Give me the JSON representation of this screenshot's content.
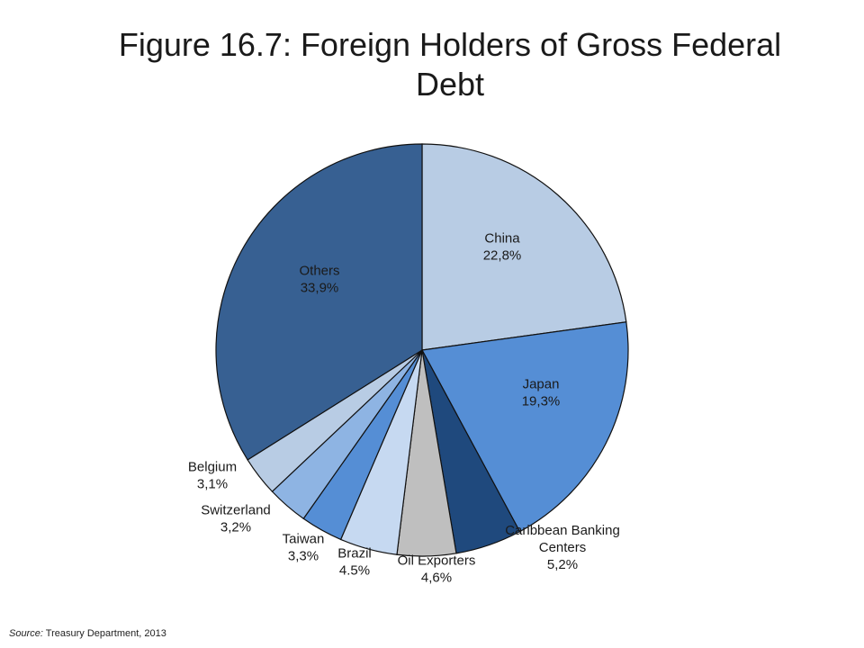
{
  "slide": {
    "title": "Figure 16.7: Foreign Holders of Gross Federal Debt",
    "source_prefix": "Source:",
    "source_text": " Treasury Department, 2013"
  },
  "chart_data": {
    "type": "pie",
    "title": "Figure 16.7: Foreign Holders of Gross Federal Debt",
    "start_angle": "12 o'clock",
    "direction": "clockwise",
    "legend": "none",
    "slices": [
      {
        "name": "China",
        "value": 22.8,
        "label": "22,8%",
        "color": "#b8cce4"
      },
      {
        "name": "Japan",
        "value": 19.3,
        "label": "19,3%",
        "color": "#558ed5"
      },
      {
        "name": "Caribbean Banking Centers",
        "value": 5.2,
        "label": "5,2%",
        "color": "#1f497d"
      },
      {
        "name": "Oil Exporters",
        "value": 4.6,
        "label": "4,6%",
        "color": "#bfbfbf"
      },
      {
        "name": "Brazil",
        "value": 4.5,
        "label": "4.5%",
        "color": "#c6d9f1"
      },
      {
        "name": "Taiwan",
        "value": 3.3,
        "label": "3,3%",
        "color": "#558ed5"
      },
      {
        "name": "Switzerland",
        "value": 3.2,
        "label": "3,2%",
        "color": "#8eb4e3"
      },
      {
        "name": "Belgium",
        "value": 3.1,
        "label": "3,1%",
        "color": "#b8cce4"
      },
      {
        "name": "Others",
        "value": 33.9,
        "label": "33,9%",
        "color": "#376092"
      }
    ]
  }
}
